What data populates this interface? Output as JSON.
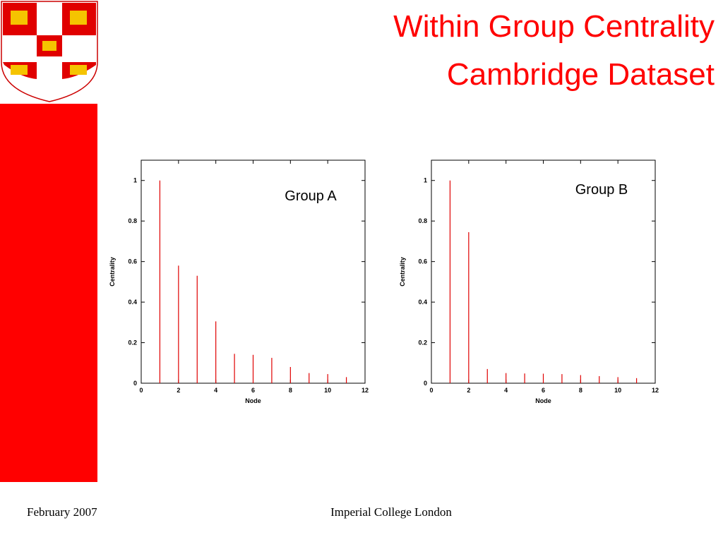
{
  "slide": {
    "title_lines": [
      "Within Group Centrality",
      "Cambridge Dataset"
    ],
    "footer_left": "February 2007",
    "footer_center": "Imperial College London"
  },
  "chart_data": [
    {
      "type": "stem",
      "annotation": "Group A",
      "xlabel": "Node",
      "ylabel": "Centrality",
      "color": "#e00000",
      "x": [
        1,
        2,
        3,
        4,
        5,
        6,
        7,
        8,
        9,
        10,
        11
      ],
      "values": [
        1,
        0.58,
        0.53,
        0.305,
        0.145,
        0.14,
        0.125,
        0.08,
        0.05,
        0.045,
        0.03
      ],
      "xlim": [
        0,
        12
      ],
      "xticks": [
        0,
        2,
        4,
        6,
        8,
        10,
        12
      ],
      "ylim": [
        0,
        1.1
      ],
      "yticks": [
        0,
        0.2,
        0.4,
        0.6,
        0.8,
        1
      ]
    },
    {
      "type": "stem",
      "annotation": "Group B",
      "xlabel": "Node",
      "ylabel": "Centrality",
      "color": "#e00000",
      "x": [
        1,
        2,
        3,
        4,
        5,
        6,
        7,
        8,
        9,
        10,
        11
      ],
      "values": [
        1,
        0.745,
        0.07,
        0.05,
        0.048,
        0.047,
        0.045,
        0.04,
        0.035,
        0.03,
        0.025
      ],
      "xlim": [
        0,
        12
      ],
      "xticks": [
        0,
        2,
        4,
        6,
        8,
        10,
        12
      ],
      "ylim": [
        0,
        1.1
      ],
      "yticks": [
        0,
        0.2,
        0.4,
        0.6,
        0.8,
        1
      ]
    }
  ]
}
